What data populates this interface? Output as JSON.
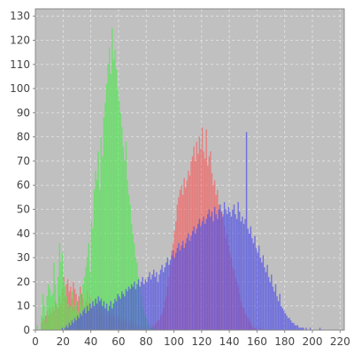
{
  "chart_data": {
    "type": "bar",
    "chart_style": "overlapping RGB histogram",
    "plot_background": "#c0c0c0",
    "grid": true,
    "grid_color": "#e6e6e6",
    "xlim": [
      0,
      223
    ],
    "ylim": [
      0,
      133
    ],
    "xticks": [
      0,
      20,
      40,
      60,
      80,
      100,
      120,
      140,
      160,
      180,
      200,
      220
    ],
    "yticks": [
      0,
      10,
      20,
      30,
      40,
      50,
      60,
      70,
      80,
      90,
      100,
      110,
      120,
      130
    ],
    "series": [
      {
        "color": "#ff5050",
        "opacity": 0.6,
        "x_start": 0,
        "values": [
          0,
          0,
          0,
          0,
          3,
          5,
          4,
          6,
          8,
          6,
          9,
          7,
          10,
          8,
          12,
          10,
          9,
          14,
          11,
          17,
          22,
          14,
          19,
          21,
          16,
          18,
          13,
          20,
          17,
          15,
          12,
          14,
          18,
          15,
          13,
          10,
          12,
          16,
          11,
          14,
          10,
          12,
          8,
          13,
          9,
          10,
          7,
          11,
          8,
          6,
          9,
          5,
          7,
          8,
          6,
          7,
          5,
          6,
          4,
          6,
          5,
          4,
          5,
          3,
          4,
          5,
          3,
          2,
          4,
          3,
          2,
          3,
          1,
          2,
          1,
          2,
          1,
          0,
          1,
          1,
          1,
          0,
          1,
          1,
          2,
          1,
          2,
          3,
          4,
          4,
          6,
          7,
          9,
          12,
          14,
          18,
          22,
          27,
          33,
          36,
          41,
          45,
          52,
          55,
          58,
          60,
          56,
          63,
          59,
          62,
          66,
          64,
          70,
          72,
          76,
          70,
          78,
          73,
          80,
          75,
          84,
          74,
          71,
          83,
          68,
          72,
          74,
          65,
          60,
          62,
          56,
          58,
          52,
          50,
          46,
          48,
          43,
          38,
          40,
          35,
          32,
          30,
          26,
          25,
          22,
          20,
          18,
          15,
          12,
          10,
          9,
          7,
          6,
          5,
          4,
          3,
          2,
          1,
          1,
          1,
          0,
          0,
          1,
          0,
          0,
          0,
          0,
          0,
          0,
          0,
          0,
          0,
          0,
          0,
          0,
          0,
          0,
          0,
          0,
          0,
          0,
          0,
          0,
          0,
          0,
          0,
          0,
          0,
          0,
          0,
          0,
          0,
          0,
          0,
          0,
          0,
          0,
          0,
          0,
          0,
          0,
          0,
          0,
          0,
          0,
          0,
          0,
          0,
          0,
          0,
          0,
          0,
          0,
          0,
          0,
          0,
          0,
          0,
          0
        ]
      },
      {
        "color": "#50e650",
        "opacity": 0.72,
        "x_start": 0,
        "values": [
          0,
          2,
          0,
          0,
          6,
          15,
          10,
          3,
          14,
          19,
          17,
          14,
          15,
          28,
          19,
          11,
          22,
          36,
          28,
          32,
          20,
          18,
          14,
          11,
          9,
          10,
          16,
          8,
          10,
          12,
          8,
          7,
          15,
          10,
          19,
          22,
          26,
          30,
          36,
          24,
          45,
          42,
          58,
          66,
          62,
          74,
          58,
          80,
          72,
          88,
          94,
          102,
          110,
          117,
          106,
          125,
          112,
          116,
          108,
          100,
          95,
          90,
          84,
          76,
          70,
          78,
          62,
          56,
          52,
          44,
          40,
          36,
          30,
          28,
          22,
          18,
          14,
          10,
          8,
          6,
          5,
          3,
          2,
          1,
          1,
          0,
          0,
          1,
          0,
          0,
          0,
          0,
          0,
          0,
          0,
          0,
          0,
          0,
          0,
          0,
          0,
          0,
          0,
          0,
          0,
          0,
          0,
          0,
          0,
          0,
          0,
          0,
          0,
          0,
          0,
          0,
          0,
          0,
          0,
          0,
          0,
          0,
          0,
          0,
          0,
          0,
          0,
          0,
          0,
          0,
          0,
          0,
          0,
          0,
          0,
          0,
          0,
          0,
          0,
          0,
          0,
          0,
          0,
          0,
          0,
          0,
          0,
          0,
          0,
          0,
          0,
          0,
          0,
          0,
          0,
          0,
          0,
          0,
          0,
          0,
          0,
          0,
          0,
          0,
          0,
          0,
          0,
          0,
          0,
          0,
          0,
          0,
          0,
          0,
          0,
          0,
          0,
          0,
          0,
          0,
          0,
          0,
          0,
          0,
          0,
          0,
          0,
          0,
          0,
          0,
          0,
          0,
          0,
          0,
          0,
          0,
          0,
          0,
          0,
          0,
          0,
          0,
          0,
          0,
          0,
          0,
          0,
          0,
          0,
          0,
          0,
          0,
          0,
          0,
          0,
          0,
          0,
          0,
          0,
          0,
          0,
          0,
          0
        ]
      },
      {
        "color": "#5050e6",
        "opacity": 0.72,
        "x_start": 0,
        "values": [
          0,
          0,
          0,
          0,
          0,
          0,
          0,
          0,
          0,
          0,
          0,
          0,
          0,
          0,
          0,
          0,
          0,
          0,
          0,
          1,
          0,
          1,
          2,
          1,
          3,
          2,
          4,
          3,
          5,
          4,
          6,
          5,
          7,
          6,
          8,
          9,
          7,
          10,
          8,
          11,
          9,
          12,
          10,
          13,
          11,
          14,
          12,
          13,
          10,
          12,
          9,
          11,
          8,
          10,
          12,
          9,
          11,
          13,
          12,
          15,
          14,
          13,
          16,
          15,
          14,
          17,
          16,
          18,
          17,
          19,
          18,
          20,
          17,
          19,
          21,
          18,
          20,
          22,
          19,
          21,
          20,
          22,
          24,
          21,
          23,
          25,
          22,
          24,
          20,
          23,
          25,
          27,
          24,
          26,
          28,
          30,
          27,
          29,
          31,
          33,
          30,
          32,
          34,
          36,
          33,
          35,
          37,
          34,
          36,
          38,
          40,
          37,
          39,
          41,
          43,
          40,
          42,
          44,
          46,
          43,
          45,
          47,
          44,
          46,
          48,
          50,
          47,
          49,
          45,
          51,
          48,
          46,
          50,
          52,
          49,
          47,
          53,
          50,
          48,
          51,
          49,
          47,
          50,
          52,
          48,
          46,
          53,
          49,
          45,
          47,
          44,
          46,
          82,
          42,
          40,
          43,
          38,
          36,
          39,
          34,
          32,
          35,
          30,
          28,
          31,
          26,
          24,
          27,
          22,
          20,
          23,
          18,
          16,
          19,
          14,
          12,
          15,
          10,
          9,
          8,
          7,
          6,
          5,
          5,
          4,
          3,
          3,
          2,
          2,
          2,
          1,
          1,
          1,
          1,
          0,
          1,
          0,
          0,
          1,
          0,
          0,
          0,
          0,
          0,
          0,
          1,
          0,
          0,
          0,
          0,
          0,
          0,
          0,
          0,
          0,
          0,
          0,
          0,
          0
        ]
      }
    ]
  }
}
